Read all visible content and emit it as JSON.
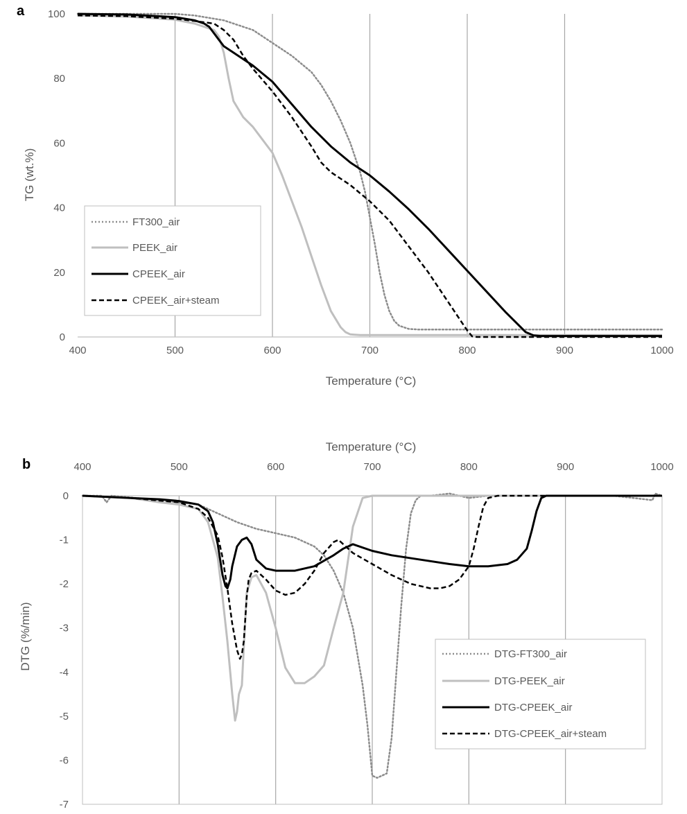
{
  "chart_data": [
    {
      "panel_label": "a",
      "type": "line",
      "xlabel": "Temperature (°C)",
      "ylabel": "TG (wt.%)",
      "xlim": [
        400,
        1000
      ],
      "ylim": [
        0,
        100
      ],
      "x_ticks": [
        400,
        500,
        600,
        700,
        800,
        900,
        1000
      ],
      "y_ticks": [
        0,
        20,
        40,
        60,
        80,
        100
      ],
      "x_axis_position": "bottom",
      "grid": "vertical",
      "legend_position": "bottom-left",
      "series": [
        {
          "name": "FT300_air",
          "style": "dotted",
          "color": "#8c8c8c",
          "x": [
            400,
            500,
            520,
            550,
            580,
            600,
            620,
            640,
            650,
            660,
            670,
            680,
            690,
            695,
            700,
            705,
            710,
            715,
            720,
            725,
            730,
            740,
            750,
            800,
            1000
          ],
          "y": [
            100,
            100,
            99.5,
            98,
            95,
            91,
            87,
            82,
            78,
            73,
            67,
            60,
            51,
            45,
            37,
            29,
            20,
            13,
            8,
            5,
            3.5,
            2.5,
            2.3,
            2.3,
            2.3
          ]
        },
        {
          "name": "PEEK_air",
          "style": "solid",
          "color": "#bfbfbf",
          "x": [
            400,
            450,
            500,
            520,
            540,
            545,
            550,
            555,
            560,
            570,
            580,
            590,
            600,
            610,
            620,
            630,
            640,
            650,
            660,
            670,
            675,
            680,
            690,
            700,
            1000
          ],
          "y": [
            99.5,
            99.2,
            98.2,
            97,
            95,
            93,
            88,
            80,
            73,
            68,
            65,
            61,
            57,
            50,
            42,
            34,
            25,
            16,
            8,
            3,
            1.5,
            0.8,
            0.6,
            0.6,
            0.6
          ]
        },
        {
          "name": "CPEEK_air",
          "style": "solid",
          "color": "#000000",
          "x": [
            400,
            450,
            500,
            520,
            530,
            535,
            540,
            545,
            550,
            560,
            580,
            600,
            620,
            640,
            660,
            680,
            700,
            720,
            740,
            760,
            780,
            800,
            820,
            840,
            860,
            868,
            875,
            1000
          ],
          "y": [
            100,
            99.8,
            99,
            98,
            97,
            96,
            94,
            92,
            90,
            88,
            84,
            79,
            72,
            65,
            59,
            54,
            50,
            45,
            39.5,
            33.5,
            27,
            20.5,
            14,
            7.5,
            1.5,
            0.5,
            0.3,
            0.3
          ]
        },
        {
          "name": "CPEEK_air+steam",
          "style": "dashed",
          "color": "#000000",
          "x": [
            400,
            450,
            500,
            520,
            540,
            550,
            560,
            570,
            580,
            600,
            620,
            640,
            650,
            660,
            680,
            700,
            720,
            740,
            760,
            780,
            800,
            805,
            810,
            1000
          ],
          "y": [
            99.5,
            99.3,
            98.5,
            97.8,
            97,
            95,
            92,
            87,
            83,
            76,
            68,
            59,
            54,
            51,
            47,
            42,
            36,
            28,
            20,
            11,
            2,
            0.2,
            0,
            0
          ]
        }
      ]
    },
    {
      "panel_label": "b",
      "type": "line",
      "xlabel": "Temperature (°C)",
      "ylabel": "DTG (%/min)",
      "xlim": [
        400,
        1000
      ],
      "ylim": [
        -7,
        0
      ],
      "x_ticks": [
        400,
        500,
        600,
        700,
        800,
        900,
        1000
      ],
      "y_ticks": [
        0,
        -1,
        -2,
        -3,
        -4,
        -5,
        -6,
        -7
      ],
      "x_axis_position": "top",
      "grid": "vertical",
      "legend_position": "bottom-right",
      "series": [
        {
          "name": "DTG-FT300_air",
          "style": "dotted",
          "color": "#8c8c8c",
          "x": [
            400,
            420,
            425,
            430,
            480,
            520,
            540,
            560,
            580,
            600,
            620,
            640,
            650,
            660,
            670,
            680,
            690,
            695,
            700,
            705,
            710,
            715,
            720,
            725,
            730,
            735,
            740,
            745,
            750,
            760,
            780,
            800,
            820,
            850,
            900,
            950,
            990,
            993,
            1000
          ],
          "y": [
            0,
            0,
            -0.15,
            0,
            -0.1,
            -0.2,
            -0.4,
            -0.6,
            -0.75,
            -0.85,
            -0.95,
            -1.15,
            -1.35,
            -1.7,
            -2.2,
            -3.0,
            -4.3,
            -5.2,
            -6.35,
            -6.4,
            -6.35,
            -6.3,
            -5.5,
            -4.0,
            -2.5,
            -1.2,
            -0.4,
            -0.1,
            0,
            0,
            0.05,
            -0.05,
            0,
            0,
            0,
            0,
            -0.1,
            0.05,
            0
          ]
        },
        {
          "name": "DTG-PEEK_air",
          "style": "solid",
          "color": "#bfbfbf",
          "x": [
            400,
            450,
            480,
            500,
            520,
            530,
            540,
            545,
            550,
            555,
            558,
            560,
            562,
            565,
            568,
            570,
            575,
            580,
            590,
            600,
            610,
            620,
            630,
            640,
            650,
            660,
            670,
            680,
            690,
            700,
            720,
            1000
          ],
          "y": [
            0,
            -0.05,
            -0.15,
            -0.2,
            -0.3,
            -0.6,
            -1.4,
            -2.3,
            -3.3,
            -4.5,
            -5.1,
            -4.9,
            -4.5,
            -4.3,
            -3.0,
            -2.2,
            -1.85,
            -1.8,
            -2.2,
            -3.0,
            -3.9,
            -4.25,
            -4.25,
            -4.1,
            -3.85,
            -3.0,
            -2.2,
            -0.7,
            -0.05,
            0,
            0,
            0
          ]
        },
        {
          "name": "DTG-CPEEK_air",
          "style": "solid",
          "color": "#000000",
          "x": [
            400,
            450,
            480,
            500,
            520,
            530,
            535,
            540,
            545,
            548,
            550,
            553,
            555,
            560,
            565,
            570,
            575,
            580,
            590,
            600,
            620,
            640,
            660,
            670,
            680,
            700,
            720,
            750,
            780,
            800,
            820,
            840,
            850,
            860,
            865,
            870,
            875,
            880,
            1000
          ],
          "y": [
            0,
            -0.05,
            -0.08,
            -0.12,
            -0.2,
            -0.35,
            -0.6,
            -1.1,
            -1.8,
            -2.05,
            -2.1,
            -1.9,
            -1.6,
            -1.15,
            -1.0,
            -0.95,
            -1.1,
            -1.45,
            -1.65,
            -1.7,
            -1.7,
            -1.6,
            -1.35,
            -1.2,
            -1.1,
            -1.25,
            -1.35,
            -1.45,
            -1.55,
            -1.6,
            -1.6,
            -1.55,
            -1.45,
            -1.2,
            -0.8,
            -0.35,
            -0.05,
            0,
            0
          ]
        },
        {
          "name": "DTG-CPEEK_air+steam",
          "style": "dashed",
          "color": "#000000",
          "x": [
            400,
            450,
            500,
            520,
            530,
            540,
            545,
            550,
            555,
            560,
            563,
            565,
            567,
            570,
            572,
            575,
            580,
            590,
            600,
            610,
            620,
            630,
            640,
            650,
            660,
            665,
            670,
            680,
            700,
            720,
            740,
            760,
            770,
            780,
            790,
            800,
            805,
            810,
            815,
            820,
            830,
            850,
            1000
          ],
          "y": [
            0,
            -0.05,
            -0.15,
            -0.3,
            -0.5,
            -0.9,
            -1.4,
            -2.1,
            -2.9,
            -3.5,
            -3.7,
            -3.6,
            -3.3,
            -2.3,
            -1.9,
            -1.75,
            -1.7,
            -1.9,
            -2.15,
            -2.25,
            -2.2,
            -2.0,
            -1.7,
            -1.3,
            -1.05,
            -1.0,
            -1.1,
            -1.3,
            -1.55,
            -1.8,
            -2.0,
            -2.1,
            -2.1,
            -2.05,
            -1.9,
            -1.6,
            -1.2,
            -0.7,
            -0.25,
            -0.05,
            0,
            0,
            0
          ]
        }
      ]
    }
  ]
}
